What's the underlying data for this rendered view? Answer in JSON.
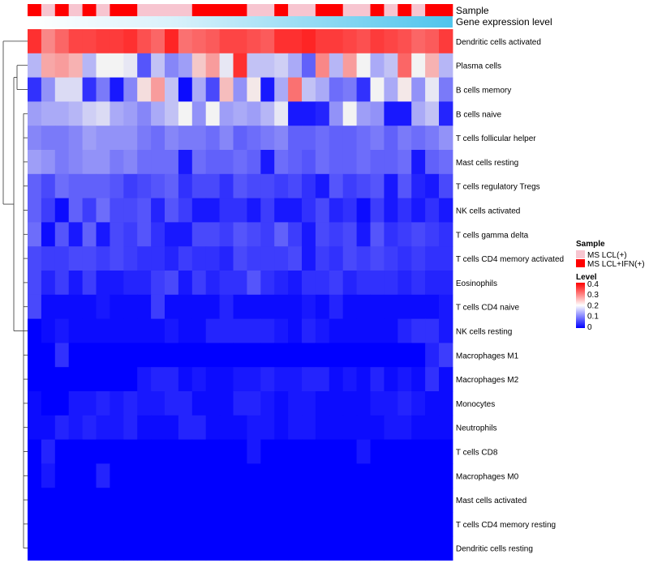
{
  "chart_data": {
    "type": "heatmap",
    "annotation_tracks": [
      {
        "label": "Sample",
        "values": [
          "MS LCL+IFN(+)",
          "MS LCL(+)",
          "MS LCL+IFN(+)",
          "MS LCL(+)",
          "MS LCL+IFN(+)",
          "MS LCL(+)",
          "MS LCL+IFN(+)",
          "MS LCL+IFN(+)",
          "MS LCL(+)",
          "MS LCL(+)",
          "MS LCL(+)",
          "MS LCL(+)",
          "MS LCL+IFN(+)",
          "MS LCL+IFN(+)",
          "MS LCL+IFN(+)",
          "MS LCL+IFN(+)",
          "MS LCL(+)",
          "MS LCL(+)",
          "MS LCL+IFN(+)",
          "MS LCL(+)",
          "MS LCL(+)",
          "MS LCL+IFN(+)",
          "MS LCL+IFN(+)",
          "MS LCL(+)",
          "MS LCL(+)",
          "MS LCL+IFN(+)",
          "MS LCL(+)",
          "MS LCL+IFN(+)",
          "MS LCL(+)",
          "MS LCL+IFN(+)",
          "MS LCL+IFN(+)"
        ]
      },
      {
        "label": "Gene expression level",
        "gradient": [
          "#ffffff",
          "#4ec4ec"
        ]
      }
    ],
    "columns": 31,
    "rows": [
      {
        "name": "Dendritic cells activated",
        "values": [
          0.38,
          0.3,
          0.33,
          0.36,
          0.36,
          0.37,
          0.37,
          0.38,
          0.35,
          0.33,
          0.39,
          0.32,
          0.33,
          0.34,
          0.36,
          0.36,
          0.35,
          0.34,
          0.38,
          0.38,
          0.39,
          0.37,
          0.37,
          0.36,
          0.35,
          0.37,
          0.36,
          0.35,
          0.33,
          0.34,
          0.37
        ]
      },
      {
        "name": "Plasma cells",
        "values": [
          0.15,
          0.27,
          0.28,
          0.26,
          0.15,
          0.2,
          0.2,
          0.19,
          0.07,
          0.16,
          0.11,
          0.13,
          0.24,
          0.28,
          0.19,
          0.38,
          0.16,
          0.16,
          0.17,
          0.14,
          0.08,
          0.3,
          0.15,
          0.28,
          0.2,
          0.14,
          0.16,
          0.33,
          0.2,
          0.26,
          0.15
        ]
      },
      {
        "name": "B cells memory",
        "values": [
          0.04,
          0.12,
          0.18,
          0.18,
          0.04,
          0.1,
          0.02,
          0.11,
          0.22,
          0.28,
          0.16,
          0.01,
          0.14,
          0.06,
          0.25,
          0.12,
          0.21,
          0.02,
          0.14,
          0.32,
          0.16,
          0.14,
          0.09,
          0.1,
          0.04,
          0.2,
          0.14,
          0.21,
          0.12,
          0.19,
          0.1
        ]
      },
      {
        "name": "B cells naive",
        "values": [
          0.13,
          0.14,
          0.14,
          0.15,
          0.17,
          0.18,
          0.14,
          0.13,
          0.11,
          0.14,
          0.16,
          0.2,
          0.12,
          0.2,
          0.13,
          0.14,
          0.13,
          0.15,
          0.19,
          0.02,
          0.02,
          0.03,
          0.12,
          0.2,
          0.13,
          0.12,
          0.02,
          0.02,
          0.14,
          0.16,
          0.03
        ]
      },
      {
        "name": "T cells follicular helper",
        "values": [
          0.11,
          0.1,
          0.1,
          0.11,
          0.13,
          0.12,
          0.12,
          0.12,
          0.1,
          0.09,
          0.11,
          0.1,
          0.1,
          0.09,
          0.11,
          0.08,
          0.09,
          0.1,
          0.11,
          0.08,
          0.08,
          0.09,
          0.08,
          0.08,
          0.09,
          0.1,
          0.08,
          0.1,
          0.09,
          0.1,
          0.12
        ]
      },
      {
        "name": "Mast cells resting",
        "values": [
          0.13,
          0.12,
          0.1,
          0.11,
          0.12,
          0.12,
          0.1,
          0.11,
          0.09,
          0.09,
          0.09,
          0.02,
          0.09,
          0.08,
          0.08,
          0.09,
          0.08,
          0.02,
          0.09,
          0.08,
          0.07,
          0.09,
          0.08,
          0.08,
          0.09,
          0.08,
          0.08,
          0.09,
          0.02,
          0.08,
          0.09
        ]
      },
      {
        "name": "T cells regulatory  Tregs",
        "values": [
          0.08,
          0.06,
          0.09,
          0.08,
          0.08,
          0.08,
          0.07,
          0.05,
          0.06,
          0.07,
          0.08,
          0.04,
          0.06,
          0.06,
          0.04,
          0.07,
          0.06,
          0.06,
          0.05,
          0.06,
          0.04,
          0.02,
          0.07,
          0.05,
          0.06,
          0.07,
          0.02,
          0.07,
          0.03,
          0.02,
          0.06
        ]
      },
      {
        "name": "NK cells activated",
        "values": [
          0.08,
          0.05,
          0.01,
          0.08,
          0.05,
          0.09,
          0.06,
          0.06,
          0.07,
          0.03,
          0.07,
          0.05,
          0.02,
          0.02,
          0.04,
          0.04,
          0.02,
          0.05,
          0.02,
          0.02,
          0.04,
          0.06,
          0.03,
          0.04,
          0.01,
          0.05,
          0.02,
          0.04,
          0.02,
          0.04,
          0.02
        ]
      },
      {
        "name": "T cells gamma delta",
        "values": [
          0.09,
          0.01,
          0.07,
          0.02,
          0.08,
          0.02,
          0.06,
          0.05,
          0.07,
          0.04,
          0.02,
          0.02,
          0.06,
          0.06,
          0.05,
          0.07,
          0.06,
          0.05,
          0.08,
          0.05,
          0.02,
          0.06,
          0.05,
          0.06,
          0.02,
          0.07,
          0.04,
          0.05,
          0.06,
          0.05,
          0.04
        ]
      },
      {
        "name": "T cells CD4 memory activated",
        "values": [
          0.06,
          0.05,
          0.05,
          0.06,
          0.06,
          0.05,
          0.06,
          0.05,
          0.04,
          0.04,
          0.03,
          0.05,
          0.04,
          0.04,
          0.03,
          0.06,
          0.05,
          0.05,
          0.05,
          0.06,
          0.02,
          0.05,
          0.04,
          0.06,
          0.05,
          0.06,
          0.05,
          0.04,
          0.05,
          0.04,
          0.04
        ]
      },
      {
        "name": "Eosinophils",
        "values": [
          0.06,
          0.03,
          0.05,
          0.02,
          0.05,
          0.02,
          0.02,
          0.03,
          0.03,
          0.05,
          0.06,
          0.02,
          0.05,
          0.03,
          0.04,
          0.04,
          0.07,
          0.04,
          0.03,
          0.02,
          0.04,
          0.04,
          0.05,
          0.03,
          0.04,
          0.04,
          0.04,
          0.03,
          0.04,
          0.03,
          0.03
        ]
      },
      {
        "name": "T cells CD4 naive",
        "values": [
          0.06,
          0.01,
          0.01,
          0.01,
          0.01,
          0.02,
          0.01,
          0.01,
          0.01,
          0.05,
          0.01,
          0.01,
          0.01,
          0.01,
          0.03,
          0.01,
          0.01,
          0.01,
          0.01,
          0.01,
          0.02,
          0.01,
          0.03,
          0.01,
          0.01,
          0.01,
          0.01,
          0.01,
          0.01,
          0.01,
          0.02
        ]
      },
      {
        "name": "NK cells resting",
        "values": [
          0.0,
          0.01,
          0.02,
          0.01,
          0.01,
          0.01,
          0.01,
          0.01,
          0.01,
          0.01,
          0.02,
          0.01,
          0.01,
          0.03,
          0.03,
          0.03,
          0.03,
          0.03,
          0.02,
          0.01,
          0.03,
          0.02,
          0.01,
          0.01,
          0.01,
          0.01,
          0.01,
          0.03,
          0.04,
          0.04,
          0.02
        ]
      },
      {
        "name": "Macrophages M1",
        "values": [
          0.0,
          0.0,
          0.04,
          0.0,
          0.0,
          0.0,
          0.0,
          0.0,
          0.0,
          0.0,
          0.0,
          0.0,
          0.0,
          0.0,
          0.0,
          0.0,
          0.0,
          0.0,
          0.0,
          0.0,
          0.0,
          0.0,
          0.0,
          0.0,
          0.0,
          0.0,
          0.0,
          0.0,
          0.0,
          0.03,
          0.05
        ]
      },
      {
        "name": "Macrophages M2",
        "values": [
          0.0,
          0.0,
          0.0,
          0.0,
          0.0,
          0.0,
          0.0,
          0.0,
          0.02,
          0.03,
          0.03,
          0.01,
          0.02,
          0.01,
          0.01,
          0.02,
          0.02,
          0.03,
          0.02,
          0.02,
          0.03,
          0.03,
          0.01,
          0.02,
          0.01,
          0.03,
          0.01,
          0.02,
          0.01,
          0.04,
          0.01
        ]
      },
      {
        "name": "Monocytes",
        "values": [
          0.01,
          0.0,
          0.0,
          0.02,
          0.02,
          0.03,
          0.02,
          0.03,
          0.02,
          0.02,
          0.03,
          0.03,
          0.01,
          0.01,
          0.01,
          0.03,
          0.03,
          0.02,
          0.01,
          0.02,
          0.02,
          0.01,
          0.01,
          0.01,
          0.01,
          0.02,
          0.02,
          0.03,
          0.02,
          0.01,
          0.01
        ]
      },
      {
        "name": "Neutrophils",
        "values": [
          0.01,
          0.01,
          0.03,
          0.02,
          0.03,
          0.02,
          0.02,
          0.03,
          0.01,
          0.01,
          0.01,
          0.03,
          0.03,
          0.01,
          0.01,
          0.01,
          0.02,
          0.02,
          0.01,
          0.02,
          0.02,
          0.01,
          0.01,
          0.01,
          0.01,
          0.01,
          0.02,
          0.02,
          0.01,
          0.01,
          0.01
        ]
      },
      {
        "name": "T cells CD8",
        "values": [
          0.0,
          0.03,
          0.0,
          0.0,
          0.0,
          0.0,
          0.0,
          0.0,
          0.0,
          0.0,
          0.0,
          0.0,
          0.0,
          0.0,
          0.0,
          0.0,
          0.02,
          0.0,
          0.0,
          0.0,
          0.0,
          0.0,
          0.0,
          0.0,
          0.02,
          0.0,
          0.0,
          0.0,
          0.0,
          0.0,
          0.0
        ]
      },
      {
        "name": "Macrophages M0",
        "values": [
          0.0,
          0.02,
          0.0,
          0.0,
          0.0,
          0.03,
          0.0,
          0.0,
          0.0,
          0.0,
          0.0,
          0.0,
          0.0,
          0.0,
          0.0,
          0.0,
          0.0,
          0.0,
          0.0,
          0.0,
          0.0,
          0.0,
          0.0,
          0.0,
          0.0,
          0.0,
          0.0,
          0.0,
          0.0,
          0.0,
          0.0
        ]
      },
      {
        "name": "Mast cells activated",
        "values": [
          0.0,
          0.0,
          0.0,
          0.0,
          0.0,
          0.0,
          0.0,
          0.0,
          0.0,
          0.0,
          0.0,
          0.0,
          0.0,
          0.0,
          0.0,
          0.0,
          0.0,
          0.0,
          0.0,
          0.0,
          0.0,
          0.0,
          0.0,
          0.0,
          0.0,
          0.0,
          0.0,
          0.0,
          0.0,
          0.0,
          0.0
        ]
      },
      {
        "name": "T cells CD4 memory resting",
        "values": [
          0.0,
          0.0,
          0.0,
          0.0,
          0.0,
          0.0,
          0.0,
          0.0,
          0.0,
          0.0,
          0.0,
          0.0,
          0.0,
          0.0,
          0.0,
          0.0,
          0.0,
          0.0,
          0.0,
          0.0,
          0.0,
          0.0,
          0.0,
          0.0,
          0.0,
          0.0,
          0.0,
          0.0,
          0.0,
          0.0,
          0.0
        ]
      },
      {
        "name": "Dendritic cells resting",
        "values": [
          0.0,
          0.0,
          0.0,
          0.0,
          0.0,
          0.0,
          0.0,
          0.0,
          0.0,
          0.0,
          0.0,
          0.0,
          0.0,
          0.0,
          0.0,
          0.0,
          0.0,
          0.0,
          0.0,
          0.0,
          0.0,
          0.0,
          0.0,
          0.0,
          0.0,
          0.0,
          0.0,
          0.0,
          0.0,
          0.0,
          0.0
        ]
      }
    ],
    "legend": {
      "sample": {
        "title": "Sample",
        "entries": [
          {
            "label": "MS LCL(+)",
            "color": "#f7c5d0"
          },
          {
            "label": "MS LCL+IFN(+)",
            "color": "#ff0000"
          }
        ]
      },
      "level": {
        "title": "Level",
        "ticks": [
          "0.4",
          "0.3",
          "0.2",
          "0.1",
          "0"
        ],
        "range": [
          0,
          0.4
        ],
        "colors": {
          "low": "#0000ff",
          "mid": "#ffffff",
          "high": "#ff0000"
        }
      }
    },
    "row_dendrogram": true,
    "colors": {
      "low": "#0000ff",
      "mid": "#f3f3f3",
      "high": "#ff1a1a"
    }
  }
}
